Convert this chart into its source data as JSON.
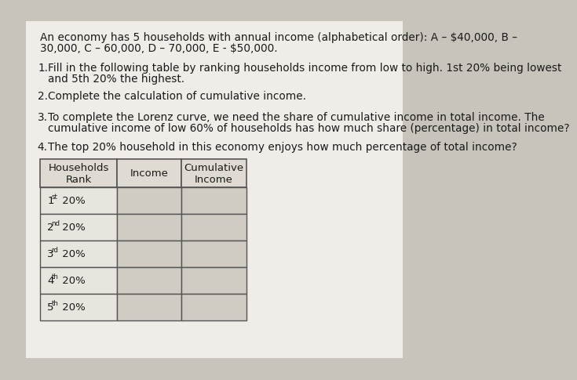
{
  "background_color": "#c8c4bc",
  "card_color": "#f0ede8",
  "text_color": "#1a1a1a",
  "title_text_line1": "An economy has 5 households with annual income (alphabetical order): A – $40,000, B –",
  "title_text_line2": "30,000, C – 60,000, D – 70,000, E - $50,000.",
  "item1_num": "1.",
  "item1_line1": "Fill in the following table by ranking households income from low to high. 1st 20% being lowest",
  "item1_line2": "and 5th 20% the highest.",
  "item2_num": "2.",
  "item2_text": "Complete the calculation of cumulative income.",
  "item3_num": "3.",
  "item3_line1": "To complete the Lorenz curve, we need the share of cumulative income in total income. The",
  "item3_line2": "cumulative income of low 60% of households has how much share (percentage) in total income?",
  "item4_num": "4.",
  "item4_text": "The top 20% household in this economy enjoys how much percentage of total income?",
  "col_headers": [
    "Households\nRank",
    "Income",
    "Cumulative\nIncome"
  ],
  "row_labels": [
    "1st 20%",
    "2nd 20%",
    "3rd 20%",
    "4th 20%",
    "5th 20%"
  ],
  "row_superscripts": [
    "st",
    "nd",
    "rd",
    "th",
    "th"
  ],
  "row_bases": [
    "1",
    "2",
    "3",
    "4",
    "5"
  ],
  "font_size_body": 9.8,
  "font_size_table": 9.5,
  "table_header_color": "#e0dbd2",
  "table_row_color": "#e8e4de",
  "table_cell_color": "#d0ccc4",
  "table_edge_color": "#555555"
}
